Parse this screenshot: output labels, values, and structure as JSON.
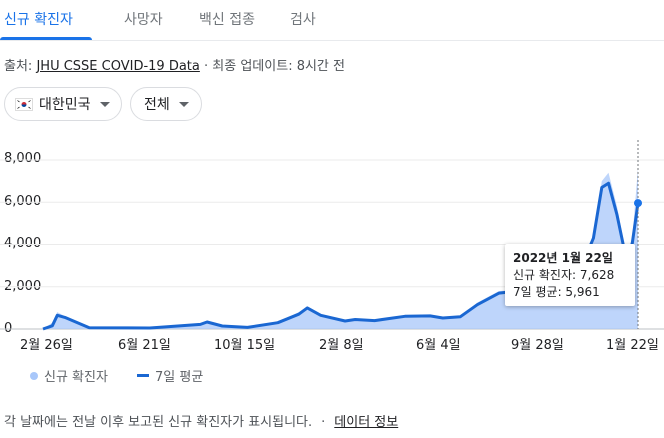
{
  "tabs": [
    {
      "label": "신규 확진자"
    },
    {
      "label": "사망자"
    },
    {
      "label": "백신 접종"
    },
    {
      "label": "검사"
    }
  ],
  "source": {
    "prefix": "출처:",
    "link": "JHU CSSE COVID-19 Data",
    "separator": "·",
    "update": "최종 업데이트: 8시간 전"
  },
  "filters": {
    "country": "대한민국",
    "range": "전체"
  },
  "tooltip": {
    "date": "2022년 1월 22일",
    "new_cases": "신규 확진자: 7,628",
    "average": "7일 평균: 5,961"
  },
  "legend": {
    "bars": "신규 확진자",
    "line": "7일 평균"
  },
  "footer": {
    "text": "각 날짜에는 전날 이후 보고된 신규 확진자가 표시됩니다.",
    "separator": "·",
    "link": "데이터 정보"
  },
  "colors": {
    "bars": "#a8c7fa",
    "line": "#1a67d2",
    "accent": "#1a73e8"
  },
  "chart_data": {
    "type": "area",
    "x_ticks": [
      "2월 26일",
      "6월 21일",
      "10월 15일",
      "2월 8일",
      "6월 4일",
      "9월 28일",
      "1월 22일"
    ],
    "y_ticks": [
      "0",
      "2,000",
      "4,000",
      "6,000",
      "8,000"
    ],
    "ylim": [
      0,
      8000
    ],
    "x": [
      "2020-02-15",
      "2020-02-26",
      "2020-03-03",
      "2020-03-12",
      "2020-04-10",
      "2020-06-21",
      "2020-08-20",
      "2020-08-28",
      "2020-09-15",
      "2020-10-15",
      "2020-11-20",
      "2020-12-15",
      "2020-12-25",
      "2021-01-10",
      "2021-02-08",
      "2021-02-20",
      "2021-03-15",
      "2021-04-20",
      "2021-05-20",
      "2021-06-04",
      "2021-06-25",
      "2021-07-15",
      "2021-08-10",
      "2021-09-01",
      "2021-09-28",
      "2021-10-20",
      "2021-11-10",
      "2021-11-30",
      "2021-12-10",
      "2021-12-18",
      "2021-12-28",
      "2022-01-07",
      "2022-01-15",
      "2022-01-22"
    ],
    "series": [
      {
        "name": "신규 확진자",
        "values": [
          0,
          300,
          800,
          600,
          70,
          50,
          280,
          400,
          130,
          80,
          330,
          800,
          1050,
          700,
          400,
          500,
          420,
          650,
          620,
          550,
          600,
          1250,
          1800,
          1850,
          2400,
          1500,
          2500,
          4400,
          7000,
          7400,
          5800,
          3700,
          4200,
          7628
        ]
      },
      {
        "name": "7일 평균",
        "values": [
          0,
          150,
          650,
          550,
          60,
          45,
          220,
          330,
          140,
          75,
          300,
          700,
          1000,
          650,
          380,
          450,
          400,
          600,
          620,
          520,
          580,
          1150,
          1700,
          1800,
          2200,
          1550,
          2400,
          4300,
          6700,
          6900,
          5400,
          3500,
          4000,
          5961
        ]
      }
    ]
  }
}
